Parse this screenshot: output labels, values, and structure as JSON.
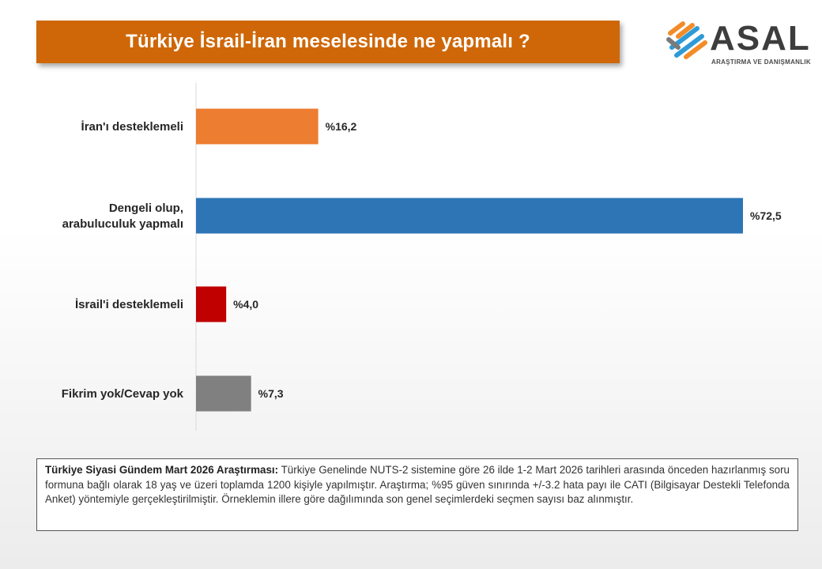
{
  "title": "Türkiye İsrail-İran meselesinde ne yapmalı ?",
  "logo": {
    "word": "ASAL",
    "subtitle": "ARAŞTIRMA VE DANIŞMANLIK"
  },
  "colors": {
    "banner": "#cf6708"
  },
  "chart_data": {
    "type": "bar",
    "orientation": "horizontal",
    "title": "Türkiye İsrail-İran meselesinde ne yapmalı ?",
    "grid": false,
    "legend": "none",
    "xlim": [
      0,
      75
    ],
    "categories": [
      [
        "İran'ı desteklemeli"
      ],
      [
        "Dengeli olup,",
        "arabuluculuk yapmalı"
      ],
      [
        "İsrail'i desteklemeli"
      ],
      [
        "Fikrim yok/Cevap yok"
      ]
    ],
    "values": [
      16.2,
      72.5,
      4.0,
      7.3
    ],
    "value_labels": [
      "%16,2",
      "%72,5",
      "%4,0",
      "%7,3"
    ],
    "colors": [
      "#ed7d31",
      "#2e75b6",
      "#c00000",
      "#808080"
    ]
  },
  "note": {
    "heading": "Türkiye Siyasi Gündem Mart 2026 Araştırması:",
    "text": "Türkiye Genelinde NUTS-2 sistemine göre 26 ilde 1-2 Mart 2026 tarihleri arasında önceden hazırlanmış soru formuna bağlı olarak 18 yaş ve üzeri toplamda 1200 kişiyle yapılmıştır. Araştırma; %95 güven sınırında +/-3.2 hata payı ile CATI (Bilgisayar Destekli Telefonda Anket) yöntemiyle gerçekleştirilmiştir. Örneklemin illere göre dağılımında son genel seçimlerdeki seçmen sayısı baz alınmıştır."
  }
}
